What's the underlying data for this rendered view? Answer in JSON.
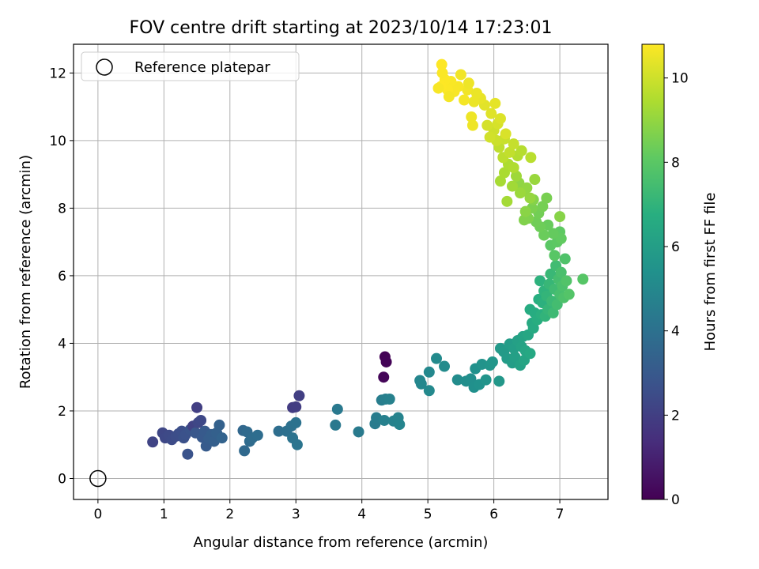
{
  "chart_data": {
    "type": "scatter",
    "title": "FOV centre drift starting at 2023/10/14 17:23:01",
    "xlabel": "Angular distance from reference (arcmin)",
    "ylabel": "Rotation from reference (arcmin)",
    "colorbar_label": "Hours from first FF file",
    "xlim": [
      -0.37,
      7.73
    ],
    "ylim": [
      -0.62,
      12.85
    ],
    "xticks": [
      "0",
      "1",
      "2",
      "3",
      "4",
      "5",
      "6",
      "7"
    ],
    "yticks": [
      "0",
      "2",
      "4",
      "6",
      "8",
      "10",
      "12"
    ],
    "colorbar_ticks": [
      "0",
      "2",
      "4",
      "6",
      "8",
      "10"
    ],
    "colorbar_range": [
      0,
      10.8
    ],
    "colormap": "viridis",
    "grid": true,
    "legend": {
      "entries": [
        "Reference platepar"
      ],
      "placement": "top-left"
    },
    "reference_point": {
      "x": 0,
      "y": 0
    },
    "series": [
      {
        "points": [
          [
            4.35,
            3.6,
            0.05
          ],
          [
            4.37,
            3.45,
            0.1
          ],
          [
            4.33,
            3.0,
            0.15
          ],
          [
            0.83,
            1.08,
            2.2
          ],
          [
            0.98,
            1.35,
            2.3
          ],
          [
            1.02,
            1.2,
            2.35
          ],
          [
            1.08,
            1.28,
            2.4
          ],
          [
            1.12,
            1.15,
            2.45
          ],
          [
            1.18,
            1.25,
            2.5
          ],
          [
            1.22,
            1.32,
            2.55
          ],
          [
            1.27,
            1.4,
            2.6
          ],
          [
            1.3,
            1.2,
            2.65
          ],
          [
            1.33,
            1.3,
            2.7
          ],
          [
            1.36,
            0.72,
            2.75
          ],
          [
            1.4,
            1.45,
            2.8
          ],
          [
            1.44,
            1.55,
            2.1
          ],
          [
            1.48,
            1.35,
            2.9
          ],
          [
            1.5,
            2.1,
            2.0
          ],
          [
            1.52,
            1.65,
            2.3
          ],
          [
            1.56,
            1.72,
            2.35
          ],
          [
            1.58,
            1.22,
            3.0
          ],
          [
            1.62,
            1.4,
            3.05
          ],
          [
            1.64,
            0.96,
            3.1
          ],
          [
            1.68,
            1.18,
            3.15
          ],
          [
            1.72,
            1.3,
            3.2
          ],
          [
            1.76,
            1.1,
            3.25
          ],
          [
            1.8,
            1.35,
            3.3
          ],
          [
            1.84,
            1.58,
            3.35
          ],
          [
            1.88,
            1.2,
            3.4
          ],
          [
            2.2,
            1.42,
            3.6
          ],
          [
            2.22,
            0.82,
            3.65
          ],
          [
            2.26,
            1.38,
            3.7
          ],
          [
            2.3,
            1.1,
            3.75
          ],
          [
            2.34,
            1.2,
            3.8
          ],
          [
            2.42,
            1.28,
            3.85
          ],
          [
            2.74,
            1.4,
            3.9
          ],
          [
            2.86,
            1.4,
            3.95
          ],
          [
            2.93,
            1.55,
            4.0
          ],
          [
            2.95,
            2.1,
            1.9
          ],
          [
            3.0,
            2.12,
            1.95
          ],
          [
            3.0,
            1.65,
            4.05
          ],
          [
            3.05,
            2.45,
            2.0
          ],
          [
            2.95,
            1.2,
            4.1
          ],
          [
            3.02,
            1.0,
            4.15
          ],
          [
            3.6,
            1.58,
            4.3
          ],
          [
            3.63,
            2.05,
            4.35
          ],
          [
            3.95,
            1.38,
            4.4
          ],
          [
            4.2,
            1.62,
            4.45
          ],
          [
            4.22,
            1.8,
            4.5
          ],
          [
            4.3,
            2.32,
            4.55
          ],
          [
            4.36,
            2.35,
            4.6
          ],
          [
            4.34,
            1.72,
            4.65
          ],
          [
            4.42,
            2.35,
            4.7
          ],
          [
            4.48,
            1.7,
            4.75
          ],
          [
            4.55,
            1.8,
            4.8
          ],
          [
            4.57,
            1.6,
            4.85
          ],
          [
            4.88,
            2.9,
            4.9
          ],
          [
            4.9,
            2.8,
            4.95
          ],
          [
            5.02,
            3.15,
            5.0
          ],
          [
            5.02,
            2.6,
            5.05
          ],
          [
            5.13,
            3.55,
            5.1
          ],
          [
            5.25,
            3.32,
            5.15
          ],
          [
            5.45,
            2.92,
            5.2
          ],
          [
            5.58,
            2.88,
            5.25
          ],
          [
            5.65,
            2.95,
            5.3
          ],
          [
            5.7,
            2.7,
            5.35
          ],
          [
            5.72,
            3.25,
            5.4
          ],
          [
            5.78,
            2.78,
            5.45
          ],
          [
            5.82,
            3.38,
            5.5
          ],
          [
            5.88,
            2.92,
            5.55
          ],
          [
            5.94,
            3.35,
            5.6
          ],
          [
            5.98,
            3.45,
            5.65
          ],
          [
            6.08,
            2.88,
            5.7
          ],
          [
            6.1,
            3.85,
            5.75
          ],
          [
            6.15,
            3.75,
            5.8
          ],
          [
            6.2,
            3.55,
            5.85
          ],
          [
            6.24,
            3.98,
            5.9
          ],
          [
            6.28,
            3.42,
            5.95
          ],
          [
            6.3,
            3.85,
            6.0
          ],
          [
            6.32,
            3.6,
            6.05
          ],
          [
            6.36,
            4.08,
            6.1
          ],
          [
            6.4,
            3.35,
            6.15
          ],
          [
            6.42,
            3.9,
            6.2
          ],
          [
            6.44,
            4.2,
            6.25
          ],
          [
            6.46,
            3.5,
            6.3
          ],
          [
            6.48,
            3.78,
            6.35
          ],
          [
            6.52,
            4.25,
            6.4
          ],
          [
            6.55,
            3.7,
            6.45
          ],
          [
            6.58,
            4.6,
            6.5
          ],
          [
            6.6,
            4.45,
            6.55
          ],
          [
            6.55,
            5.0,
            6.6
          ],
          [
            6.62,
            4.9,
            6.65
          ],
          [
            6.66,
            4.7,
            6.7
          ],
          [
            6.68,
            5.3,
            6.75
          ],
          [
            6.72,
            4.85,
            6.8
          ],
          [
            6.74,
            5.2,
            6.85
          ],
          [
            6.7,
            5.85,
            6.9
          ],
          [
            6.76,
            5.55,
            6.95
          ],
          [
            6.78,
            4.8,
            7.0
          ],
          [
            6.8,
            5.4,
            7.05
          ],
          [
            6.82,
            5.0,
            7.1
          ],
          [
            6.84,
            5.75,
            7.15
          ],
          [
            6.86,
            6.05,
            7.2
          ],
          [
            6.88,
            5.25,
            7.25
          ],
          [
            6.9,
            4.9,
            7.3
          ],
          [
            6.92,
            5.6,
            7.35
          ],
          [
            6.94,
            6.3,
            7.4
          ],
          [
            6.96,
            5.15,
            7.45
          ],
          [
            6.98,
            5.9,
            7.5
          ],
          [
            7.0,
            5.45,
            7.55
          ],
          [
            7.02,
            6.1,
            7.6
          ],
          [
            7.04,
            5.7,
            7.65
          ],
          [
            7.06,
            5.35,
            7.7
          ],
          [
            7.08,
            6.5,
            7.75
          ],
          [
            7.1,
            5.85,
            7.8
          ],
          [
            7.14,
            5.45,
            7.85
          ],
          [
            7.35,
            5.9,
            7.9
          ],
          [
            6.92,
            6.6,
            7.95
          ],
          [
            6.86,
            6.9,
            8.0
          ],
          [
            6.96,
            7.0,
            8.05
          ],
          [
            7.0,
            7.3,
            8.1
          ],
          [
            7.02,
            7.1,
            8.15
          ],
          [
            6.9,
            7.25,
            8.2
          ],
          [
            6.82,
            7.5,
            8.25
          ],
          [
            6.76,
            7.2,
            8.3
          ],
          [
            6.7,
            7.45,
            8.35
          ],
          [
            6.64,
            7.6,
            8.4
          ],
          [
            6.68,
            7.85,
            8.45
          ],
          [
            6.74,
            8.05,
            8.5
          ],
          [
            6.8,
            8.3,
            8.55
          ],
          [
            6.58,
            8.0,
            8.6
          ],
          [
            6.52,
            7.7,
            8.65
          ],
          [
            6.46,
            7.65,
            8.7
          ],
          [
            6.6,
            8.25,
            8.75
          ],
          [
            7.0,
            7.75,
            8.8
          ],
          [
            6.48,
            7.9,
            8.85
          ],
          [
            6.44,
            8.5,
            8.9
          ],
          [
            6.38,
            8.75,
            8.95
          ],
          [
            6.5,
            8.6,
            9.0
          ],
          [
            6.55,
            8.3,
            9.05
          ],
          [
            6.62,
            8.85,
            9.1
          ],
          [
            6.4,
            8.45,
            9.15
          ],
          [
            6.34,
            8.95,
            9.2
          ],
          [
            6.28,
            8.65,
            9.25
          ],
          [
            6.2,
            8.2,
            9.3
          ],
          [
            6.1,
            8.8,
            9.35
          ],
          [
            6.16,
            9.05,
            9.4
          ],
          [
            6.22,
            9.3,
            9.45
          ],
          [
            6.3,
            9.2,
            9.5
          ],
          [
            6.36,
            9.55,
            9.55
          ],
          [
            6.42,
            9.7,
            9.6
          ],
          [
            6.56,
            9.5,
            9.65
          ],
          [
            6.14,
            9.5,
            9.7
          ],
          [
            6.08,
            9.8,
            9.75
          ],
          [
            6.24,
            9.65,
            9.8
          ],
          [
            6.3,
            9.9,
            9.85
          ],
          [
            6.16,
            10.05,
            9.9
          ],
          [
            6.04,
            10.0,
            9.95
          ],
          [
            6.0,
            10.3,
            10.0
          ],
          [
            5.94,
            10.1,
            10.05
          ],
          [
            5.9,
            10.45,
            10.1
          ],
          [
            6.06,
            10.5,
            10.15
          ],
          [
            6.18,
            10.2,
            10.2
          ],
          [
            6.1,
            10.65,
            10.25
          ],
          [
            5.96,
            10.8,
            10.3
          ],
          [
            5.86,
            11.05,
            10.35
          ],
          [
            6.02,
            11.1,
            10.4
          ],
          [
            5.8,
            11.25,
            10.45
          ],
          [
            5.7,
            11.15,
            10.5
          ],
          [
            5.66,
            10.7,
            10.55
          ],
          [
            5.6,
            11.5,
            10.6
          ],
          [
            5.55,
            11.2,
            10.65
          ],
          [
            5.46,
            11.6,
            10.7
          ],
          [
            5.4,
            11.45,
            10.72
          ],
          [
            5.35,
            11.75,
            10.74
          ],
          [
            5.3,
            11.5,
            10.76
          ],
          [
            5.26,
            11.8,
            10.78
          ],
          [
            5.2,
            11.6,
            10.8
          ],
          [
            5.16,
            11.55,
            10.7
          ],
          [
            5.22,
            12.0,
            10.75
          ],
          [
            5.21,
            12.25,
            10.8
          ],
          [
            5.32,
            11.3,
            10.65
          ],
          [
            5.5,
            11.95,
            10.6
          ],
          [
            5.62,
            11.7,
            10.55
          ],
          [
            5.74,
            11.4,
            10.5
          ],
          [
            5.68,
            10.45,
            10.55
          ]
        ]
      }
    ]
  }
}
